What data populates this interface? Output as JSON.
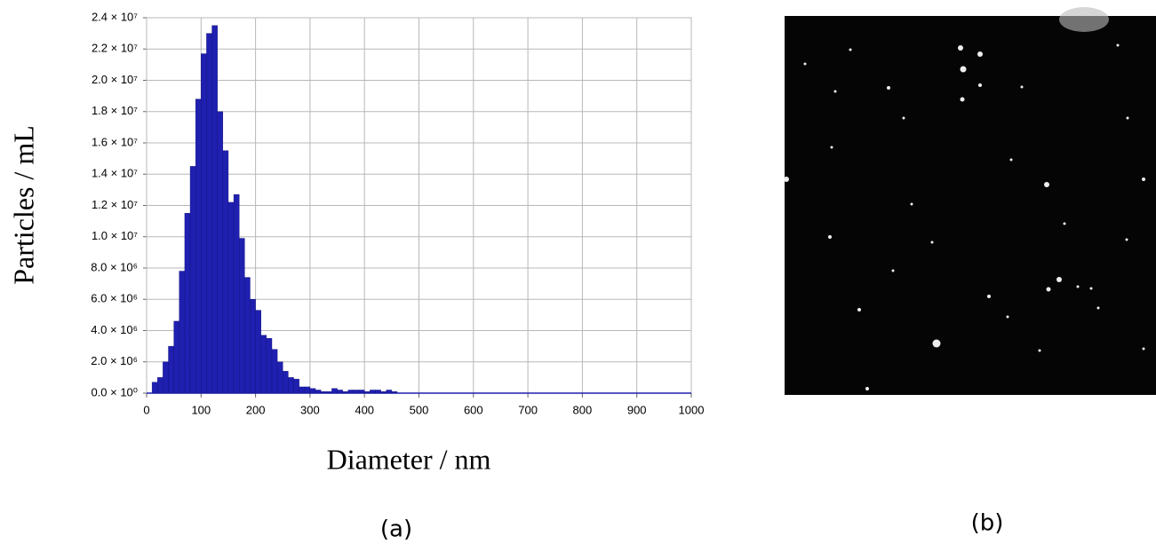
{
  "chart_data": {
    "type": "histogram",
    "ylabel": "Particles / mL",
    "xlabel": "Diameter / nm",
    "bins": [
      10,
      20,
      30,
      40,
      50,
      60,
      70,
      80,
      90,
      100,
      110,
      120,
      130,
      140,
      150,
      160,
      170,
      180,
      190,
      200,
      210,
      220,
      230,
      240,
      250,
      260,
      270,
      280,
      290,
      300,
      310,
      320,
      330,
      340,
      350,
      360,
      370,
      380,
      390,
      400,
      410,
      420,
      430,
      440,
      450,
      460
    ],
    "values": [
      700000,
      1000000,
      2000000,
      3000000,
      4600000,
      7800000,
      11500000,
      14500000,
      18800000,
      21700000,
      23000000,
      23500000,
      18000000,
      15500000,
      12200000,
      12700000,
      9900000,
      7400000,
      6000000,
      5300000,
      3700000,
      3500000,
      2800000,
      2000000,
      1400000,
      1000000,
      900000,
      400000,
      400000,
      300000,
      200000,
      100000,
      100000,
      300000,
      200000,
      100000,
      200000,
      200000,
      200000,
      100000,
      200000,
      200000,
      100000,
      200000,
      100000
    ],
    "color": "#1f1fb0",
    "xlim": [
      0,
      1000
    ],
    "xticks": [
      0,
      100,
      200,
      300,
      400,
      500,
      600,
      700,
      800,
      900,
      1000
    ],
    "ylim": [
      0,
      24000000
    ],
    "yticks": [
      {
        "value": 0,
        "label": "0.0 × 10⁰"
      },
      {
        "value": 2000000,
        "label": "2.0 × 10⁶"
      },
      {
        "value": 4000000,
        "label": "4.0 × 10⁶"
      },
      {
        "value": 6000000,
        "label": "6.0 × 10⁶"
      },
      {
        "value": 8000000,
        "label": "8.0 × 10⁶"
      },
      {
        "value": 10000000,
        "label": "1.0 × 10⁷"
      },
      {
        "value": 12000000,
        "label": "1.2 × 10⁷"
      },
      {
        "value": 14000000,
        "label": "1.4 × 10⁷"
      },
      {
        "value": 16000000,
        "label": "1.6 × 10⁷"
      },
      {
        "value": 18000000,
        "label": "1.8 × 10⁷"
      },
      {
        "value": 20000000,
        "label": "2.0 × 10⁷"
      },
      {
        "value": 22000000,
        "label": "2.2 × 10⁷"
      },
      {
        "value": 24000000,
        "label": "2.4 × 10⁷"
      }
    ],
    "grid": true
  },
  "panels": {
    "a": "(a)",
    "b": "(b)"
  }
}
